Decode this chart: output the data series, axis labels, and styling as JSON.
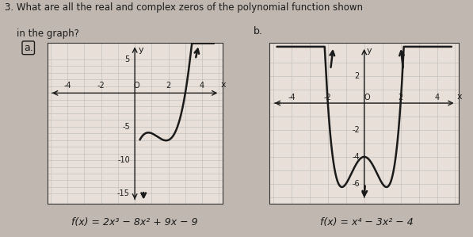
{
  "title_line1": "3. What are all the real and complex zeros of the polynomial function shown",
  "title_line2": "    in the graph?",
  "label_a": "a.",
  "label_b": "b.",
  "func_a_label": "f(x) = 2x³ − 8x² + 9x − 9",
  "func_b_label": "f(x) = x⁴ − 3x² − 4",
  "graph_a": {
    "xlim": [
      -5.2,
      5.2
    ],
    "ylim": [
      -16.5,
      7.5
    ],
    "grid_xmin": -5,
    "grid_xmax": 5,
    "grid_ymin": -15,
    "grid_ymax": 5,
    "grid_step_x": 1,
    "grid_step_y": 1,
    "xlabel": "x",
    "ylabel": "y",
    "bg_color": "#e8e0d8"
  },
  "graph_b": {
    "xlim": [
      -5.2,
      5.2
    ],
    "ylim": [
      -7.5,
      4.5
    ],
    "grid_xmin": -5,
    "grid_xmax": 5,
    "grid_ymin": -7,
    "grid_ymax": 3,
    "grid_step_x": 1,
    "grid_step_y": 1,
    "xlabel": "x",
    "ylabel": "y",
    "bg_color": "#e8e0d8"
  },
  "curve_color": "#1a1a1a",
  "curve_linewidth": 1.8,
  "axis_color": "#1a1a1a",
  "grid_color": "#bbbbbb",
  "text_color": "#1a1a1a",
  "bg_color": "#c0b8b0",
  "graph_border_color": "#333333",
  "title_fontsize": 8.5,
  "tick_fontsize": 7,
  "label_fontsize": 8,
  "formula_fontsize": 9
}
